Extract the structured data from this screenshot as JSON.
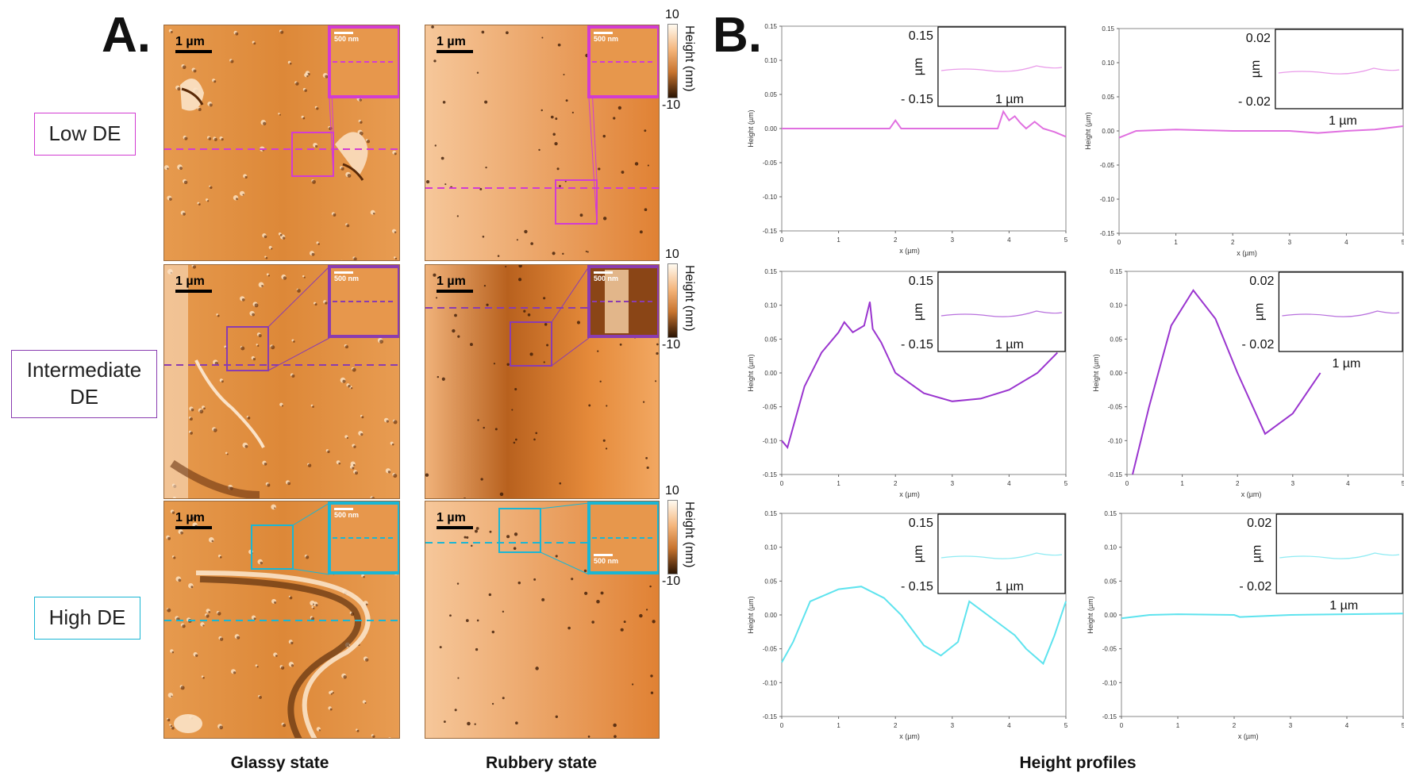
{
  "panel_a": {
    "letter": "A.",
    "row_labels": [
      {
        "text": "Low DE",
        "color": "#d23cd2"
      },
      {
        "text": "Intermediate\nDE",
        "color": "#8a3cb0"
      },
      {
        "text": "High DE",
        "color": "#1ab6d4"
      }
    ],
    "scale_main": "1 µm",
    "scale_inset": "500 nm",
    "colorbar": {
      "max": "10",
      "min": "-10",
      "title": "Height (nm)"
    },
    "captions": {
      "glassy": "Glassy state",
      "rubbery": "Rubbery state"
    }
  },
  "panel_b": {
    "letter": "B.",
    "caption": "Height profiles",
    "axis": {
      "xlabel": "x (µm)",
      "ylabel": "Height (µm)"
    },
    "inset_glassy": {
      "ymax": "0.15",
      "ymin": "- 0.15",
      "unit": "µm",
      "scale": "1 µm"
    },
    "inset_rubbery": {
      "ymax": "0.02",
      "ymin": "- 0.02",
      "unit": "µm",
      "scale": "1 µm"
    }
  },
  "colors": {
    "low": "#e070e0",
    "intermediate": "#9a35cf",
    "high": "#5ee3ee",
    "afm_base": "#e08a3c"
  },
  "chart_data": [
    {
      "type": "line",
      "name": "Low DE glassy",
      "xlabel": "x (µm)",
      "ylabel": "Height (µm)",
      "xlim": [
        0,
        5
      ],
      "ylim": [
        -0.15,
        0.15
      ],
      "x": [
        0,
        0.5,
        1,
        1.5,
        1.9,
        2.0,
        2.1,
        2.5,
        3,
        3.5,
        3.8,
        3.9,
        4.0,
        4.1,
        4.2,
        4.3,
        4.45,
        4.6,
        4.8,
        5.0
      ],
      "y": [
        0.0,
        0.0,
        0.0,
        0.0,
        0.0,
        0.012,
        0.0,
        0.0,
        0.0,
        0.0,
        0.0,
        0.025,
        0.012,
        0.018,
        0.008,
        0.0,
        0.01,
        0.0,
        -0.005,
        -0.012
      ]
    },
    {
      "type": "line",
      "name": "Low DE rubbery",
      "xlabel": "x (µm)",
      "ylabel": "Height (µm)",
      "xlim": [
        0,
        5
      ],
      "ylim": [
        -0.15,
        0.15
      ],
      "x": [
        0,
        0.3,
        1,
        2,
        3,
        3.5,
        4,
        4.5,
        5
      ],
      "y": [
        -0.01,
        0.0,
        0.002,
        0.0,
        0.0,
        -0.003,
        0.0,
        0.002,
        0.007
      ]
    },
    {
      "type": "line",
      "name": "Intermediate DE glassy",
      "xlabel": "x (µm)",
      "ylabel": "Height (µm)",
      "xlim": [
        0,
        5
      ],
      "ylim": [
        -0.15,
        0.15
      ],
      "x": [
        0,
        0.1,
        0.2,
        0.4,
        0.7,
        1.0,
        1.1,
        1.25,
        1.45,
        1.55,
        1.6,
        1.75,
        2.0,
        2.5,
        3.0,
        3.5,
        4.0,
        4.5,
        4.85
      ],
      "y": [
        -0.1,
        -0.11,
        -0.08,
        -0.02,
        0.03,
        0.06,
        0.075,
        0.06,
        0.07,
        0.105,
        0.065,
        0.045,
        0.0,
        -0.03,
        -0.042,
        -0.038,
        -0.025,
        0.0,
        0.03
      ]
    },
    {
      "type": "line",
      "name": "Intermediate DE rubbery",
      "xlabel": "x (µm)",
      "ylabel": "Height (µm)",
      "xlim": [
        0,
        5
      ],
      "ylim": [
        -0.15,
        0.15
      ],
      "x": [
        0.1,
        0.4,
        0.8,
        1.2,
        1.6,
        2.0,
        2.5,
        3.0,
        3.5
      ],
      "y": [
        -0.15,
        -0.05,
        0.07,
        0.122,
        0.08,
        0.0,
        -0.09,
        -0.06,
        0.0
      ]
    },
    {
      "type": "line",
      "name": "High DE glassy",
      "xlabel": "x (µm)",
      "ylabel": "Height (µm)",
      "xlim": [
        0,
        5
      ],
      "ylim": [
        -0.15,
        0.15
      ],
      "x": [
        0,
        0.2,
        0.5,
        1.0,
        1.4,
        1.8,
        2.1,
        2.5,
        2.8,
        3.1,
        3.3,
        4.1,
        4.3,
        4.6,
        4.8,
        5.0
      ],
      "y": [
        -0.07,
        -0.04,
        0.02,
        0.038,
        0.042,
        0.025,
        0.0,
        -0.045,
        -0.06,
        -0.04,
        0.02,
        -0.03,
        -0.05,
        -0.072,
        -0.03,
        0.02
      ]
    },
    {
      "type": "line",
      "name": "High DE rubbery",
      "xlabel": "x (µm)",
      "ylabel": "Height (µm)",
      "xlim": [
        0,
        5
      ],
      "ylim": [
        -0.15,
        0.15
      ],
      "x": [
        0,
        0.5,
        1,
        2,
        2.1,
        3,
        4,
        5
      ],
      "y": [
        -0.005,
        0.0,
        0.001,
        0.0,
        -0.003,
        0.0,
        0.001,
        0.002
      ]
    }
  ]
}
